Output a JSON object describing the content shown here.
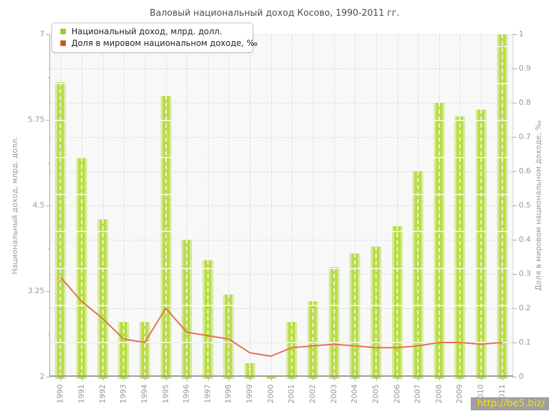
{
  "title": "Валовый национальный доход Косово, 1990-2011 гг.",
  "legend": {
    "items": [
      {
        "label": "Национальный доход, млрд. долл.",
        "color": "#99cc22"
      },
      {
        "label": "Доля в мировом национальном доходе, ‰",
        "color": "#cc5522"
      }
    ]
  },
  "watermark": {
    "text": "http://be5.biz/"
  },
  "colors": {
    "bar_core": "#b9dc49",
    "bar_edge": "#d9eca1",
    "line": "#e0714e",
    "grid": "#dcdcdc",
    "axis": "#9a9a9a",
    "tick_text": "#999999",
    "title_text": "#4d4d4d",
    "plot_bg": "#f8f8f8",
    "watermark_bg": "#9f9f9f",
    "watermark_text": "#ffdf00"
  },
  "chart_data": {
    "type": "bar",
    "title": "Валовый национальный доход Косово, 1990-2011 гг.",
    "categories": [
      "1990",
      "1991",
      "1992",
      "1993",
      "1994",
      "1995",
      "1996",
      "1997",
      "1998",
      "1999",
      "2000",
      "2001",
      "2002",
      "2003",
      "2004",
      "2005",
      "2006",
      "2007",
      "2008",
      "2009",
      "2010",
      "2011"
    ],
    "series": [
      {
        "name": "Национальный доход, млрд. долл.",
        "type": "bar",
        "axis": "left",
        "color": "#b9dc49",
        "values": [
          6.3,
          5.2,
          4.3,
          2.8,
          2.8,
          6.1,
          4.0,
          3.7,
          3.2,
          2.2,
          2.0,
          2.8,
          3.1,
          3.6,
          3.8,
          3.9,
          4.2,
          5.0,
          6.0,
          5.8,
          5.9,
          7.0
        ]
      },
      {
        "name": "Доля в мировом национальном доходе, ‰",
        "type": "line",
        "axis": "right",
        "color": "#e0714e",
        "values": [
          0.29,
          0.22,
          0.17,
          0.11,
          0.1,
          0.2,
          0.13,
          0.12,
          0.11,
          0.07,
          0.06,
          0.085,
          0.09,
          0.095,
          0.09,
          0.085,
          0.085,
          0.09,
          0.1,
          0.1,
          0.095,
          0.1
        ]
      }
    ],
    "left_axis": {
      "label": "Национальный доход, млрд. долл.",
      "min": 2,
      "max": 7,
      "major_ticks": [
        7,
        5.75,
        4.5,
        3.25,
        2
      ],
      "minor_ticks": [
        6.375,
        5.125,
        3.875,
        2.625
      ],
      "tick_labels": [
        "7",
        "5.75",
        "4.5",
        "3.25",
        "2"
      ]
    },
    "right_axis": {
      "label": "Доля в мировом национальном доходе, ‰",
      "min": 0,
      "max": 1,
      "ticks": [
        1,
        0.9,
        0.8,
        0.7,
        0.6,
        0.5,
        0.4,
        0.3,
        0.2,
        0.1,
        0
      ],
      "tick_labels": [
        "1",
        "0.9",
        "0.8",
        "0.7",
        "0.6",
        "0.5",
        "0.4",
        "0.3",
        "0.2",
        "0.1",
        "0"
      ]
    },
    "grid": true,
    "legend_position": "top-left"
  }
}
